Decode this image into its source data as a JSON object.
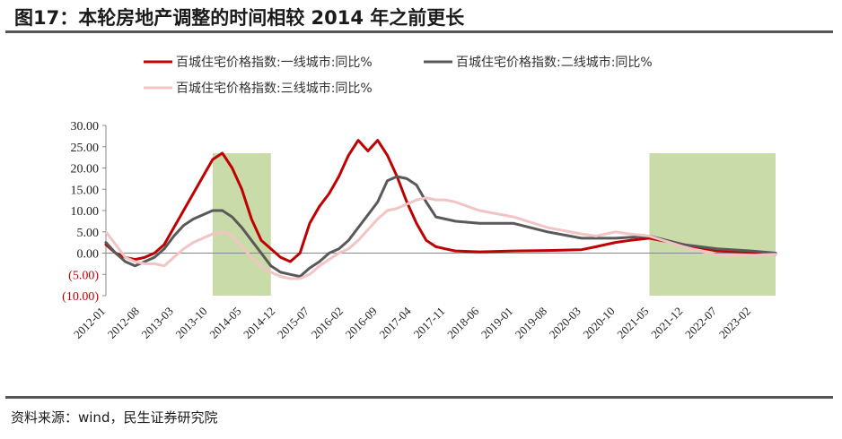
{
  "header": {
    "title": "图17：本轮房地产调整的时间相较 2014 年之前更长"
  },
  "footer": {
    "source": "资料来源：wind，民生证券研究院"
  },
  "colors": {
    "tier1": "#c00000",
    "tier2": "#595959",
    "tier3": "#f2c4c4",
    "shade": "#c8dba8",
    "negative_tick": "#c00000"
  },
  "chart_data": {
    "type": "line",
    "title": "",
    "xlabel": "",
    "ylabel": "",
    "ylim": [
      -10,
      30
    ],
    "yticks": [
      30,
      25,
      20,
      15,
      10,
      5,
      0,
      -5,
      -10
    ],
    "ytick_labels": [
      "30.00",
      "25.00",
      "20.00",
      "15.00",
      "10.00",
      "5.00",
      "0.00",
      "(5.00)",
      "(10.00)"
    ],
    "x_start": "2012-01",
    "x_end": "2023-07",
    "xtick_labels": [
      "2012-01",
      "2012-08",
      "2013-03",
      "2013-10",
      "2014-05",
      "2014-12",
      "2015-07",
      "2016-02",
      "2016-09",
      "2017-04",
      "2017-11",
      "2018-06",
      "2019-01",
      "2019-08",
      "2020-03",
      "2020-10",
      "2021-05",
      "2021-12",
      "2022-07",
      "2023-02"
    ],
    "legend_position": "top",
    "shaded_periods": [
      {
        "start": "2013-11",
        "end": "2014-11"
      },
      {
        "start": "2021-05",
        "end": "2023-07"
      }
    ],
    "series": [
      {
        "name": "百城住宅价格指数:一线城市:同比%",
        "color": "#c00000",
        "points": [
          [
            "2012-01",
            2
          ],
          [
            "2012-03",
            0
          ],
          [
            "2012-05",
            -1
          ],
          [
            "2012-07",
            -1.5
          ],
          [
            "2012-09",
            -1
          ],
          [
            "2012-11",
            0
          ],
          [
            "2013-01",
            2
          ],
          [
            "2013-03",
            6
          ],
          [
            "2013-05",
            10
          ],
          [
            "2013-07",
            14
          ],
          [
            "2013-09",
            18
          ],
          [
            "2013-11",
            22
          ],
          [
            "2014-01",
            23.5
          ],
          [
            "2014-03",
            20
          ],
          [
            "2014-05",
            15
          ],
          [
            "2014-07",
            8
          ],
          [
            "2014-09",
            3
          ],
          [
            "2014-11",
            1
          ],
          [
            "2015-01",
            -1
          ],
          [
            "2015-03",
            -2
          ],
          [
            "2015-05",
            0
          ],
          [
            "2015-07",
            7
          ],
          [
            "2015-09",
            11
          ],
          [
            "2015-11",
            14
          ],
          [
            "2016-01",
            18
          ],
          [
            "2016-03",
            23
          ],
          [
            "2016-05",
            26.5
          ],
          [
            "2016-07",
            24
          ],
          [
            "2016-09",
            26.5
          ],
          [
            "2016-11",
            23
          ],
          [
            "2017-01",
            18
          ],
          [
            "2017-03",
            12
          ],
          [
            "2017-05",
            7
          ],
          [
            "2017-07",
            3
          ],
          [
            "2017-09",
            1.5
          ],
          [
            "2017-11",
            1
          ],
          [
            "2018-01",
            0.5
          ],
          [
            "2018-06",
            0.3
          ],
          [
            "2019-01",
            0.5
          ],
          [
            "2019-08",
            0.6
          ],
          [
            "2020-03",
            0.8
          ],
          [
            "2020-06",
            1.5
          ],
          [
            "2020-10",
            2.5
          ],
          [
            "2021-01",
            3
          ],
          [
            "2021-05",
            3.5
          ],
          [
            "2021-12",
            2
          ],
          [
            "2022-07",
            0.5
          ],
          [
            "2023-02",
            0.2
          ],
          [
            "2023-07",
            -0.3
          ]
        ]
      },
      {
        "name": "百城住宅价格指数:二线城市:同比%",
        "color": "#595959",
        "points": [
          [
            "2012-01",
            2.5
          ],
          [
            "2012-03",
            0
          ],
          [
            "2012-05",
            -2
          ],
          [
            "2012-07",
            -3
          ],
          [
            "2012-09",
            -2
          ],
          [
            "2012-11",
            -1
          ],
          [
            "2013-01",
            1
          ],
          [
            "2013-03",
            4
          ],
          [
            "2013-05",
            6.5
          ],
          [
            "2013-07",
            8
          ],
          [
            "2013-09",
            9
          ],
          [
            "2013-11",
            10
          ],
          [
            "2014-01",
            10
          ],
          [
            "2014-03",
            8.5
          ],
          [
            "2014-05",
            6
          ],
          [
            "2014-07",
            3
          ],
          [
            "2014-09",
            0
          ],
          [
            "2014-11",
            -3
          ],
          [
            "2015-01",
            -4.5
          ],
          [
            "2015-03",
            -5
          ],
          [
            "2015-05",
            -5.5
          ],
          [
            "2015-07",
            -3.5
          ],
          [
            "2015-09",
            -2
          ],
          [
            "2015-11",
            0
          ],
          [
            "2016-01",
            1
          ],
          [
            "2016-03",
            3
          ],
          [
            "2016-05",
            6
          ],
          [
            "2016-07",
            9
          ],
          [
            "2016-09",
            12
          ],
          [
            "2016-11",
            17
          ],
          [
            "2017-01",
            18
          ],
          [
            "2017-03",
            17.5
          ],
          [
            "2017-05",
            16
          ],
          [
            "2017-07",
            12
          ],
          [
            "2017-09",
            8.5
          ],
          [
            "2017-11",
            8
          ],
          [
            "2018-01",
            7.5
          ],
          [
            "2018-06",
            7
          ],
          [
            "2019-01",
            7
          ],
          [
            "2019-08",
            5
          ],
          [
            "2020-03",
            3.5
          ],
          [
            "2020-10",
            3.5
          ],
          [
            "2021-05",
            4
          ],
          [
            "2021-12",
            2
          ],
          [
            "2022-07",
            1
          ],
          [
            "2023-02",
            0.5
          ],
          [
            "2023-07",
            0
          ]
        ]
      },
      {
        "name": "百城住宅价格指数:三线城市:同比%",
        "color": "#f2c4c4",
        "points": [
          [
            "2012-01",
            5
          ],
          [
            "2012-03",
            2
          ],
          [
            "2012-05",
            -1
          ],
          [
            "2012-07",
            -2
          ],
          [
            "2012-09",
            -2.5
          ],
          [
            "2012-11",
            -2.5
          ],
          [
            "2013-01",
            -3
          ],
          [
            "2013-03",
            -1
          ],
          [
            "2013-05",
            1
          ],
          [
            "2013-07",
            2.5
          ],
          [
            "2013-09",
            3.5
          ],
          [
            "2013-11",
            4.5
          ],
          [
            "2014-01",
            5
          ],
          [
            "2014-03",
            4
          ],
          [
            "2014-05",
            1.5
          ],
          [
            "2014-07",
            -1
          ],
          [
            "2014-09",
            -3
          ],
          [
            "2014-11",
            -4.5
          ],
          [
            "2015-01",
            -5.5
          ],
          [
            "2015-03",
            -6
          ],
          [
            "2015-05",
            -6
          ],
          [
            "2015-07",
            -5
          ],
          [
            "2015-09",
            -3
          ],
          [
            "2015-11",
            -1.5
          ],
          [
            "2016-01",
            0
          ],
          [
            "2016-03",
            1
          ],
          [
            "2016-05",
            3
          ],
          [
            "2016-07",
            5.5
          ],
          [
            "2016-09",
            8
          ],
          [
            "2016-11",
            10
          ],
          [
            "2017-01",
            10.5
          ],
          [
            "2017-03",
            11.5
          ],
          [
            "2017-05",
            12.5
          ],
          [
            "2017-07",
            13
          ],
          [
            "2017-09",
            12.5
          ],
          [
            "2017-11",
            12.5
          ],
          [
            "2018-01",
            12
          ],
          [
            "2018-06",
            10
          ],
          [
            "2019-01",
            8.5
          ],
          [
            "2019-08",
            6
          ],
          [
            "2020-03",
            4.5
          ],
          [
            "2020-06",
            4
          ],
          [
            "2020-10",
            5
          ],
          [
            "2021-01",
            4.5
          ],
          [
            "2021-05",
            4
          ],
          [
            "2021-12",
            1.5
          ],
          [
            "2022-07",
            -0.5
          ],
          [
            "2023-02",
            -0.5
          ],
          [
            "2023-07",
            -0.3
          ]
        ]
      }
    ]
  }
}
